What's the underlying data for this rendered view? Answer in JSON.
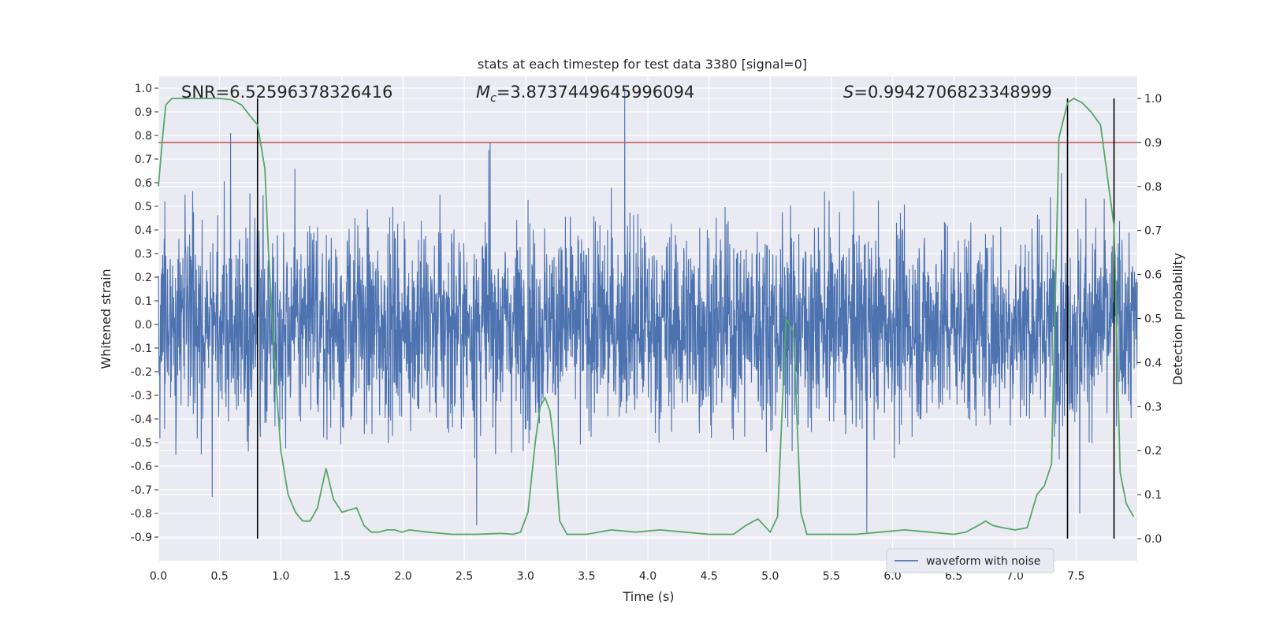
{
  "chart_data": {
    "type": "line",
    "title": "stats at each timestep for test data 3380 [signal=0]",
    "xlabel": "Time (s)",
    "ylabel": "Whitened strain",
    "ylabel_right": "Detection probability",
    "xlim": [
      0.0,
      8.0
    ],
    "ylim": [
      -1.0,
      1.05
    ],
    "ylim_right": [
      -0.05,
      1.05
    ],
    "x_ticks": [
      "0.0",
      "0.5",
      "1.0",
      "1.5",
      "2.0",
      "2.5",
      "3.0",
      "3.5",
      "4.0",
      "4.5",
      "5.0",
      "5.5",
      "6.0",
      "6.5",
      "7.0",
      "7.5"
    ],
    "y_ticks_left": [
      "1.0",
      "0.9",
      "0.8",
      "0.7",
      "0.6",
      "0.5",
      "0.4",
      "0.3",
      "0.2",
      "0.1",
      "0.0",
      "-0.1",
      "-0.2",
      "-0.3",
      "-0.4",
      "-0.5",
      "-0.6",
      "-0.7",
      "-0.8",
      "-0.9"
    ],
    "y_ticks_right": [
      "1.0",
      "0.9",
      "0.8",
      "0.7",
      "0.6",
      "0.5",
      "0.4",
      "0.3",
      "0.2",
      "0.1",
      "0.0"
    ],
    "annotations": {
      "snr": "SNR=6.52596378326416",
      "mc_symbol": "M",
      "mc_sub": "c",
      "mc_value": "=3.8737449645996094",
      "s_symbol": "S",
      "s_value": "=0.9942706823348999"
    },
    "legend": {
      "label": "waveform with noise",
      "position": "lower-right"
    },
    "threshold": {
      "value": 0.9,
      "axis": "right",
      "color": "#c44e52"
    },
    "vertical_lines": [
      0.81,
      7.43,
      7.81
    ],
    "colors": {
      "waveform": "#4c72b0",
      "probability": "#55a868",
      "background": "#eaeaf2",
      "vline": "#000000"
    },
    "waveform": {
      "envelope": 0.42,
      "peaks": [
        {
          "t": 0.59,
          "v": 0.81
        },
        {
          "t": 3.81,
          "v": 1.0
        },
        {
          "t": 2.71,
          "v": 0.77
        },
        {
          "t": 7.38,
          "v": 0.64
        },
        {
          "t": 2.6,
          "v": -0.85
        },
        {
          "t": 5.79,
          "v": -0.88
        },
        {
          "t": 7.53,
          "v": -0.8
        },
        {
          "t": 0.44,
          "v": -0.73
        }
      ]
    },
    "series": [
      {
        "name": "detection probability",
        "axis": "right",
        "x": [
          0.0,
          0.03,
          0.06,
          0.11,
          0.2,
          0.35,
          0.5,
          0.6,
          0.68,
          0.75,
          0.81,
          0.87,
          0.9,
          0.95,
          1.0,
          1.06,
          1.12,
          1.18,
          1.24,
          1.3,
          1.37,
          1.43,
          1.5,
          1.56,
          1.62,
          1.68,
          1.74,
          1.8,
          1.87,
          1.93,
          1.99,
          2.05,
          2.2,
          2.4,
          2.6,
          2.8,
          2.9,
          2.96,
          3.02,
          3.08,
          3.12,
          3.16,
          3.2,
          3.24,
          3.28,
          3.34,
          3.4,
          3.5,
          3.7,
          3.9,
          4.1,
          4.3,
          4.5,
          4.7,
          4.8,
          4.9,
          4.95,
          5.0,
          5.06,
          5.13,
          5.19,
          5.25,
          5.3,
          5.5,
          5.7,
          5.9,
          6.1,
          6.3,
          6.5,
          6.6,
          6.7,
          6.76,
          6.82,
          6.9,
          7.0,
          7.1,
          7.18,
          7.24,
          7.3,
          7.36,
          7.43,
          7.48,
          7.55,
          7.62,
          7.7,
          7.81,
          7.86,
          7.91,
          7.97
        ],
        "values": [
          0.8,
          0.9,
          0.985,
          1.0,
          1.0,
          1.0,
          1.0,
          0.997,
          0.985,
          0.96,
          0.94,
          0.84,
          0.65,
          0.4,
          0.2,
          0.1,
          0.06,
          0.04,
          0.04,
          0.07,
          0.16,
          0.09,
          0.06,
          0.065,
          0.07,
          0.03,
          0.015,
          0.015,
          0.02,
          0.02,
          0.015,
          0.02,
          0.015,
          0.01,
          0.01,
          0.012,
          0.01,
          0.015,
          0.06,
          0.22,
          0.3,
          0.32,
          0.29,
          0.2,
          0.04,
          0.01,
          0.01,
          0.01,
          0.02,
          0.015,
          0.02,
          0.015,
          0.01,
          0.01,
          0.03,
          0.045,
          0.03,
          0.015,
          0.05,
          0.5,
          0.47,
          0.06,
          0.01,
          0.01,
          0.01,
          0.015,
          0.02,
          0.015,
          0.01,
          0.015,
          0.03,
          0.04,
          0.03,
          0.025,
          0.02,
          0.025,
          0.1,
          0.12,
          0.17,
          0.91,
          0.99,
          1.0,
          0.99,
          0.97,
          0.94,
          0.71,
          0.15,
          0.08,
          0.05
        ]
      }
    ]
  }
}
